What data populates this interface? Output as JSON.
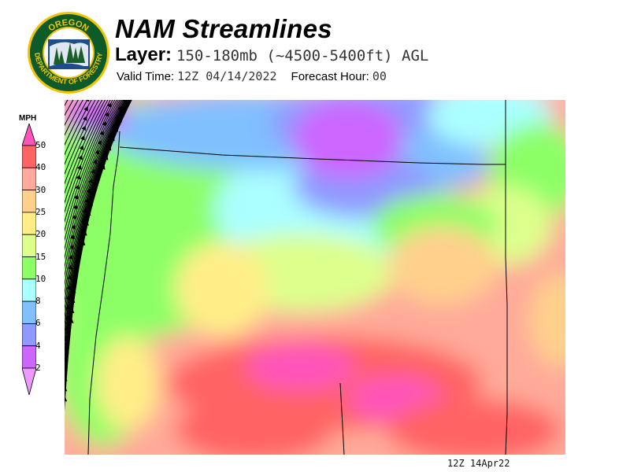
{
  "header": {
    "title": "NAM Streamlines",
    "layer_label": "Layer:",
    "layer_value": "150-180mb (~4500-5400ft) AGL",
    "valid_label": "Valid Time:",
    "valid_value": "12Z 04/14/2022",
    "forecast_label": "Forecast Hour:",
    "forecast_value": "00"
  },
  "logo": {
    "top_text": "OREGON",
    "bottom_text": "DEPARTMENT OF FORESTRY"
  },
  "legend": {
    "unit": "MPH",
    "labels": [
      "50",
      "40",
      "30",
      "25",
      "20",
      "15",
      "10",
      "8",
      "6",
      "4",
      "2"
    ],
    "colors": {
      "above_50": "#ff55bb",
      "40_50": "#ff6464",
      "30_40": "#ffaa9a",
      "25_30": "#ffd08c",
      "20_25": "#ffee88",
      "15_20": "#ddff8c",
      "10_15": "#8cff66",
      "8_10": "#aaffff",
      "6_8": "#80c0ff",
      "4_6": "#9099ff",
      "2_4": "#cc66ff",
      "below_2": "#ee99ff"
    }
  },
  "footer": {
    "timestamp": "12Z 14Apr22"
  }
}
